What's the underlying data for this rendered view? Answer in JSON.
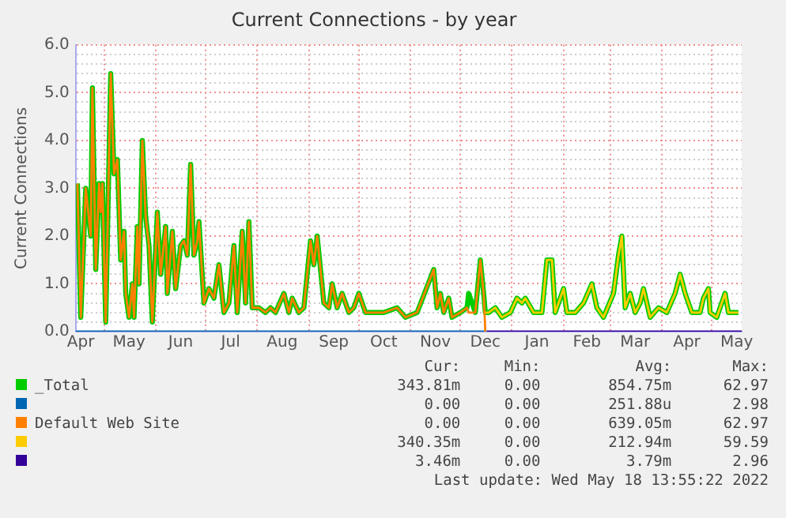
{
  "chart_data": {
    "type": "line",
    "title": "Current Connections - by year",
    "ylabel": "Current Connections",
    "xlim": [
      "2021-04-14",
      "2022-05-19"
    ],
    "xticks": [
      {
        "value": "2021-04-17",
        "label": "Apr"
      },
      {
        "value": "2021-05-01",
        "label": null
      },
      {
        "value": "2021-05-16",
        "label": "May"
      },
      {
        "value": "2021-06-01",
        "label": null
      },
      {
        "value": "2021-06-16",
        "label": "Jun"
      },
      {
        "value": "2021-07-01",
        "label": null
      },
      {
        "value": "2021-07-16",
        "label": "Jul"
      },
      {
        "value": "2021-08-01",
        "label": null
      },
      {
        "value": "2021-08-16",
        "label": "Aug"
      },
      {
        "value": "2021-09-01",
        "label": null
      },
      {
        "value": "2021-09-16",
        "label": "Sep"
      },
      {
        "value": "2021-10-01",
        "label": null
      },
      {
        "value": "2021-10-16",
        "label": "Oct"
      },
      {
        "value": "2021-11-01",
        "label": null
      },
      {
        "value": "2021-11-16",
        "label": "Nov"
      },
      {
        "value": "2021-12-01",
        "label": null
      },
      {
        "value": "2021-12-16",
        "label": "Dec"
      },
      {
        "value": "2022-01-01",
        "label": null
      },
      {
        "value": "2022-01-16",
        "label": "Jan"
      },
      {
        "value": "2022-02-01",
        "label": null
      },
      {
        "value": "2022-02-15",
        "label": "Feb"
      },
      {
        "value": "2022-03-01",
        "label": null
      },
      {
        "value": "2022-03-16",
        "label": "Mar"
      },
      {
        "value": "2022-04-01",
        "label": null
      },
      {
        "value": "2022-04-16",
        "label": "Apr"
      },
      {
        "value": "2022-05-01",
        "label": null
      },
      {
        "value": "2022-05-16",
        "label": "May"
      }
    ],
    "ylim": [
      0,
      6
    ],
    "yticks": [
      {
        "value": 0,
        "label": "0.0"
      },
      {
        "value": 0.2,
        "label": null
      },
      {
        "value": 0.4,
        "label": null
      },
      {
        "value": 0.6,
        "label": null
      },
      {
        "value": 0.8,
        "label": null
      },
      {
        "value": 1,
        "label": "1.0"
      },
      {
        "value": 1.2,
        "label": null
      },
      {
        "value": 1.4,
        "label": null
      },
      {
        "value": 1.6,
        "label": null
      },
      {
        "value": 1.8,
        "label": null
      },
      {
        "value": 2,
        "label": "2.0"
      },
      {
        "value": 2.2,
        "label": null
      },
      {
        "value": 2.4,
        "label": null
      },
      {
        "value": 2.6,
        "label": null
      },
      {
        "value": 2.8,
        "label": null
      },
      {
        "value": 3,
        "label": "3.0"
      },
      {
        "value": 3.2,
        "label": null
      },
      {
        "value": 3.4,
        "label": null
      },
      {
        "value": 3.6,
        "label": null
      },
      {
        "value": 3.8,
        "label": null
      },
      {
        "value": 4,
        "label": "4.0"
      },
      {
        "value": 4.2,
        "label": null
      },
      {
        "value": 4.4,
        "label": null
      },
      {
        "value": 4.6,
        "label": null
      },
      {
        "value": 4.8,
        "label": null
      },
      {
        "value": 5,
        "label": "5.0"
      },
      {
        "value": 5.2,
        "label": null
      },
      {
        "value": 5.4,
        "label": null
      },
      {
        "value": 5.6,
        "label": null
      },
      {
        "value": 5.8,
        "label": null
      },
      {
        "value": 6,
        "label": "6.0"
      }
    ],
    "grid": true,
    "legend": "bottom",
    "marker": "none",
    "line_style": "solid",
    "series": [
      {
        "name": "_Total",
        "color": "#00cc00",
        "x": [
          "2021-04-15",
          "2021-04-17",
          "2021-04-20",
          "2021-04-23",
          "2021-04-24",
          "2021-04-26",
          "2021-04-28",
          "2021-04-29",
          "2021-04-30",
          "2021-05-02",
          "2021-05-05",
          "2021-05-07",
          "2021-05-09",
          "2021-05-11",
          "2021-05-13",
          "2021-05-14",
          "2021-05-16",
          "2021-05-18",
          "2021-05-19",
          "2021-05-21",
          "2021-05-22",
          "2021-05-24",
          "2021-05-26",
          "2021-05-28",
          "2021-05-30",
          "2021-06-02",
          "2021-06-04",
          "2021-06-07",
          "2021-06-08",
          "2021-06-11",
          "2021-06-13",
          "2021-06-16",
          "2021-06-18",
          "2021-06-20",
          "2021-06-22",
          "2021-06-24",
          "2021-06-26",
          "2021-06-27",
          "2021-06-30",
          "2021-07-03",
          "2021-07-06",
          "2021-07-09",
          "2021-07-12",
          "2021-07-15",
          "2021-07-18",
          "2021-07-20",
          "2021-07-23",
          "2021-07-25",
          "2021-07-27",
          "2021-07-29",
          "2021-08-02",
          "2021-08-06",
          "2021-08-09",
          "2021-08-12",
          "2021-08-17",
          "2021-08-20",
          "2021-08-22",
          "2021-08-26",
          "2021-08-29",
          "2021-09-02",
          "2021-09-04",
          "2021-09-06",
          "2021-09-10",
          "2021-09-13",
          "2021-09-15",
          "2021-09-18",
          "2021-09-21",
          "2021-09-25",
          "2021-09-28",
          "2021-10-01",
          "2021-10-05",
          "2021-10-11",
          "2021-10-16",
          "2021-10-24",
          "2021-10-29",
          "2021-11-05",
          "2021-11-15",
          "2021-11-17",
          "2021-11-19",
          "2021-11-21",
          "2021-11-24",
          "2021-11-26",
          "2021-12-01",
          "2021-12-05",
          "2021-12-06",
          "2021-12-10",
          "2021-12-13",
          "2021-12-15",
          "2021-12-16",
          "2021-12-18",
          "2021-12-22",
          "2021-12-26",
          "2021-12-31",
          "2022-01-04",
          "2022-01-07",
          "2022-01-09",
          "2022-01-14",
          "2022-01-19",
          "2022-01-22",
          "2022-01-25",
          "2022-01-27",
          "2022-02-01",
          "2022-02-03",
          "2022-02-08",
          "2022-02-13",
          "2022-02-18",
          "2022-02-21",
          "2022-02-25",
          "2022-03-03",
          "2022-03-06",
          "2022-03-08",
          "2022-03-10",
          "2022-03-13",
          "2022-03-16",
          "2022-03-19",
          "2022-03-21",
          "2022-03-25",
          "2022-03-30",
          "2022-04-04",
          "2022-04-09",
          "2022-04-12",
          "2022-04-15",
          "2022-04-19",
          "2022-04-24",
          "2022-04-26",
          "2022-04-29",
          "2022-04-30",
          "2022-05-04",
          "2022-05-09",
          "2022-05-11",
          "2022-05-17"
        ],
        "values": [
          3.1,
          0.3,
          3.0,
          2.0,
          5.1,
          1.3,
          3.1,
          2.5,
          3.1,
          0.2,
          5.4,
          3.3,
          3.6,
          1.5,
          2.1,
          0.8,
          0.3,
          1.0,
          0.3,
          2.2,
          1.0,
          4.0,
          2.4,
          1.8,
          0.2,
          2.5,
          1.2,
          2.2,
          0.8,
          2.1,
          0.9,
          1.8,
          1.9,
          1.6,
          3.5,
          1.6,
          1.9,
          2.3,
          0.6,
          0.9,
          0.7,
          1.4,
          0.4,
          0.6,
          1.8,
          0.4,
          2.1,
          0.6,
          2.3,
          0.5,
          0.5,
          0.4,
          0.5,
          0.4,
          0.8,
          0.4,
          0.7,
          0.4,
          0.5,
          1.9,
          1.4,
          2.0,
          0.6,
          0.5,
          1.0,
          0.5,
          0.8,
          0.4,
          0.5,
          0.8,
          0.4,
          0.4,
          0.4,
          0.5,
          0.3,
          0.4,
          1.3,
          0.5,
          0.8,
          0.4,
          0.7,
          0.3,
          0.4,
          0.5,
          0.8,
          0.4,
          1.5,
          0.8,
          0.4,
          0.4,
          0.5,
          0.3,
          0.4,
          0.7,
          0.6,
          0.7,
          0.4,
          0.4,
          1.5,
          1.5,
          0.4,
          0.9,
          0.4,
          0.4,
          0.6,
          1.0,
          0.5,
          0.3,
          0.8,
          1.6,
          2.0,
          0.5,
          0.8,
          0.4,
          0.6,
          0.9,
          0.3,
          0.5,
          0.4,
          0.8,
          1.2,
          0.8,
          0.4,
          0.4,
          0.7,
          0.9,
          0.4,
          0.3,
          0.8,
          0.4,
          0.4
        ]
      },
      {
        "name": null,
        "color": "#0066b3",
        "x": [
          "2021-04-14",
          "2021-12-17"
        ],
        "values": [
          0,
          0
        ]
      },
      {
        "name": "Default Web Site",
        "color": "#ff8000",
        "x": [
          "2021-04-15",
          "2021-04-17",
          "2021-04-20",
          "2021-04-23",
          "2021-04-24",
          "2021-04-26",
          "2021-04-28",
          "2021-04-29",
          "2021-04-30",
          "2021-05-02",
          "2021-05-05",
          "2021-05-07",
          "2021-05-09",
          "2021-05-11",
          "2021-05-13",
          "2021-05-14",
          "2021-05-16",
          "2021-05-18",
          "2021-05-19",
          "2021-05-21",
          "2021-05-22",
          "2021-05-24",
          "2021-05-26",
          "2021-05-28",
          "2021-05-30",
          "2021-06-02",
          "2021-06-04",
          "2021-06-07",
          "2021-06-08",
          "2021-06-11",
          "2021-06-13",
          "2021-06-16",
          "2021-06-18",
          "2021-06-20",
          "2021-06-22",
          "2021-06-24",
          "2021-06-26",
          "2021-06-27",
          "2021-06-30",
          "2021-07-03",
          "2021-07-06",
          "2021-07-09",
          "2021-07-12",
          "2021-07-15",
          "2021-07-18",
          "2021-07-20",
          "2021-07-23",
          "2021-07-25",
          "2021-07-27",
          "2021-07-29",
          "2021-08-02",
          "2021-08-06",
          "2021-08-09",
          "2021-08-12",
          "2021-08-17",
          "2021-08-20",
          "2021-08-22",
          "2021-08-26",
          "2021-08-29",
          "2021-09-02",
          "2021-09-04",
          "2021-09-06",
          "2021-09-10",
          "2021-09-13",
          "2021-09-15",
          "2021-09-18",
          "2021-09-21",
          "2021-09-25",
          "2021-09-28",
          "2021-10-01",
          "2021-10-05",
          "2021-10-11",
          "2021-10-16",
          "2021-10-24",
          "2021-10-29",
          "2021-11-05",
          "2021-11-15",
          "2021-11-17",
          "2021-11-19",
          "2021-11-21",
          "2021-11-24",
          "2021-11-26",
          "2021-12-01",
          "2021-12-05",
          "2021-12-06",
          "2021-12-10",
          "2021-12-13",
          "2021-12-15",
          "2021-12-16"
        ],
        "values": [
          3.1,
          0.3,
          3.0,
          2.0,
          5.1,
          1.3,
          3.1,
          2.5,
          3.1,
          0.2,
          5.4,
          3.3,
          3.6,
          1.5,
          2.1,
          0.8,
          0.3,
          1.0,
          0.3,
          2.2,
          1.0,
          4.0,
          2.4,
          1.8,
          0.2,
          2.5,
          1.2,
          2.2,
          0.8,
          2.1,
          0.9,
          1.8,
          1.9,
          1.6,
          3.5,
          1.6,
          1.9,
          2.3,
          0.6,
          0.9,
          0.7,
          1.4,
          0.4,
          0.6,
          1.8,
          0.4,
          2.1,
          0.6,
          2.3,
          0.5,
          0.5,
          0.4,
          0.5,
          0.4,
          0.8,
          0.4,
          0.7,
          0.4,
          0.5,
          1.9,
          1.4,
          2.0,
          0.6,
          0.5,
          1.0,
          0.5,
          0.8,
          0.4,
          0.5,
          0.8,
          0.4,
          0.4,
          0.4,
          0.5,
          0.3,
          0.4,
          1.3,
          0.5,
          0.8,
          0.4,
          0.7,
          0.3,
          0.4,
          0.5,
          0.4,
          0.4,
          1.5,
          0.8,
          0
        ]
      },
      {
        "name": null,
        "color": "#ffcc00",
        "x": [
          "2021-12-16",
          "2021-12-18",
          "2021-12-22",
          "2021-12-26",
          "2021-12-31",
          "2022-01-04",
          "2022-01-07",
          "2022-01-09",
          "2022-01-14",
          "2022-01-19",
          "2022-01-22",
          "2022-01-25",
          "2022-01-27",
          "2022-02-01",
          "2022-02-03",
          "2022-02-08",
          "2022-02-13",
          "2022-02-18",
          "2022-02-21",
          "2022-02-25",
          "2022-03-03",
          "2022-03-06",
          "2022-03-08",
          "2022-03-10",
          "2022-03-13",
          "2022-03-16",
          "2022-03-19",
          "2022-03-21",
          "2022-03-25",
          "2022-03-30",
          "2022-04-04",
          "2022-04-09",
          "2022-04-12",
          "2022-04-15",
          "2022-04-19",
          "2022-04-24",
          "2022-04-26",
          "2022-04-29",
          "2022-04-30",
          "2022-05-04",
          "2022-05-09",
          "2022-05-11",
          "2022-05-17"
        ],
        "values": [
          0.4,
          0.4,
          0.5,
          0.3,
          0.4,
          0.7,
          0.6,
          0.7,
          0.4,
          0.4,
          1.5,
          1.5,
          0.4,
          0.9,
          0.4,
          0.4,
          0.6,
          1.0,
          0.5,
          0.3,
          0.8,
          1.6,
          2.0,
          0.5,
          0.8,
          0.4,
          0.6,
          0.9,
          0.3,
          0.5,
          0.4,
          0.8,
          1.2,
          0.8,
          0.4,
          0.4,
          0.7,
          0.9,
          0.4,
          0.3,
          0.8,
          0.4,
          0.4
        ]
      },
      {
        "name": null,
        "color": "#330099",
        "x": [
          "2021-12-17",
          "2022-05-19"
        ],
        "values": [
          0,
          0
        ]
      }
    ],
    "annotations": [
      "Cur:",
      "Min:",
      "Avg:",
      "Max:",
      "343.81m",
      "0.00",
      "854.75m",
      "62.97",
      "0.00",
      "0.00",
      "251.88u",
      "2.98",
      "0.00",
      "0.00",
      "639.05m",
      "62.97",
      "340.35m",
      "0.00",
      "212.94m",
      "59.59",
      "3.46m",
      "0.00",
      "3.79m",
      "2.96",
      "Last update: Wed May 18 13:55:22 2022"
    ]
  }
}
